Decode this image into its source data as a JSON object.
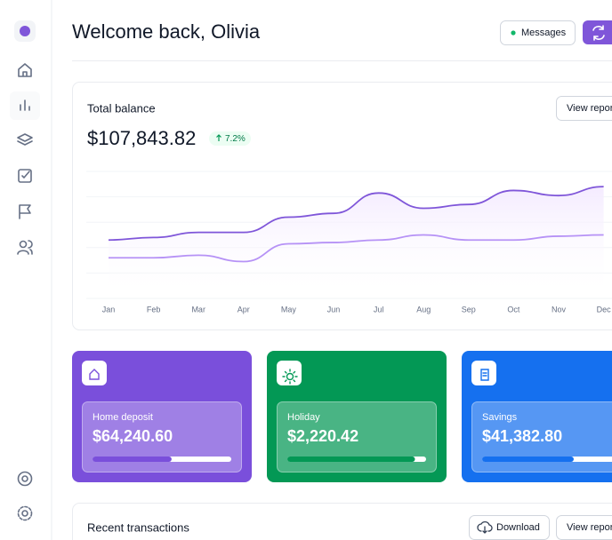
{
  "header": {
    "title": "Welcome back, Olivia",
    "messages_button": "Messages"
  },
  "balance": {
    "title": "Total balance",
    "amount": "$107,843.82",
    "change": "7.2%",
    "report_button": "View report"
  },
  "chart_data": {
    "type": "line",
    "categories": [
      "Jan",
      "Feb",
      "Mar",
      "Apr",
      "May",
      "Jun",
      "Jul",
      "Aug",
      "Sep",
      "Oct",
      "Nov",
      "Dec"
    ],
    "series": [
      {
        "color": "#7f56d9",
        "values": [
          46,
          48,
          52,
          52,
          64,
          67,
          83,
          71,
          74,
          85,
          81,
          88
        ]
      },
      {
        "color": "#b692f6",
        "values": [
          32,
          32,
          34,
          29,
          43,
          44,
          46,
          50,
          46,
          46,
          49,
          50
        ]
      }
    ],
    "ylim": [
      0,
      100
    ],
    "grid": true
  },
  "cards": [
    {
      "label": "Home deposit",
      "amount": "$64,240.60",
      "progress": 57,
      "color": "#7a4fdb"
    },
    {
      "label": "Holiday",
      "amount": "$2,220.42",
      "progress": 92,
      "color": "#039855"
    },
    {
      "label": "Savings",
      "amount": "$41,382.80",
      "progress": 66,
      "color": "#1570ef"
    }
  ],
  "transactions": {
    "title": "Recent transactions",
    "download_button": "Download",
    "report_button": "View report"
  }
}
